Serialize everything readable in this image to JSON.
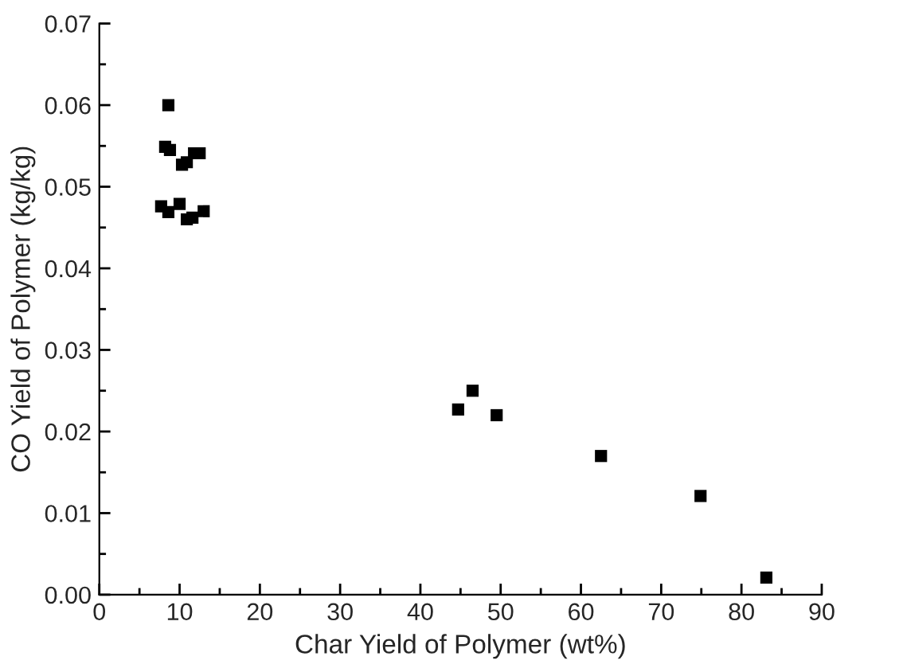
{
  "chart_data": {
    "type": "scatter",
    "xlabel": "Char Yield of Polymer (wt%)",
    "ylabel": "CO Yield of Polymer (kg/kg)",
    "x": [
      8.6,
      8.2,
      8.8,
      10.3,
      10.9,
      11.8,
      12.5,
      7.7,
      8.6,
      10.0,
      10.9,
      11.6,
      13.0,
      44.7,
      46.5,
      49.5,
      62.5,
      74.9,
      83.1
    ],
    "values": [
      0.06,
      0.0549,
      0.0545,
      0.0527,
      0.053,
      0.0541,
      0.0541,
      0.0476,
      0.0469,
      0.0479,
      0.046,
      0.0462,
      0.047,
      0.0227,
      0.025,
      0.022,
      0.017,
      0.0121,
      0.0021
    ],
    "color": "#000000",
    "marker": "square",
    "xlim": [
      0,
      90
    ],
    "xticks": [
      0,
      10,
      20,
      30,
      40,
      50,
      60,
      70,
      80,
      90
    ],
    "ylim": [
      0,
      0.07
    ],
    "yticks": [
      {
        "value": 0,
        "label": "0.00"
      },
      {
        "value": 0.01,
        "label": "0.01"
      },
      {
        "value": 0.02,
        "label": "0.02"
      },
      {
        "value": 0.03,
        "label": "0.03"
      },
      {
        "value": 0.04,
        "label": "0.04"
      },
      {
        "value": 0.05,
        "label": "0.05"
      },
      {
        "value": 0.06,
        "label": "0.06"
      },
      {
        "value": 0.07,
        "label": "0.07"
      }
    ],
    "grid": false,
    "legend": false
  }
}
